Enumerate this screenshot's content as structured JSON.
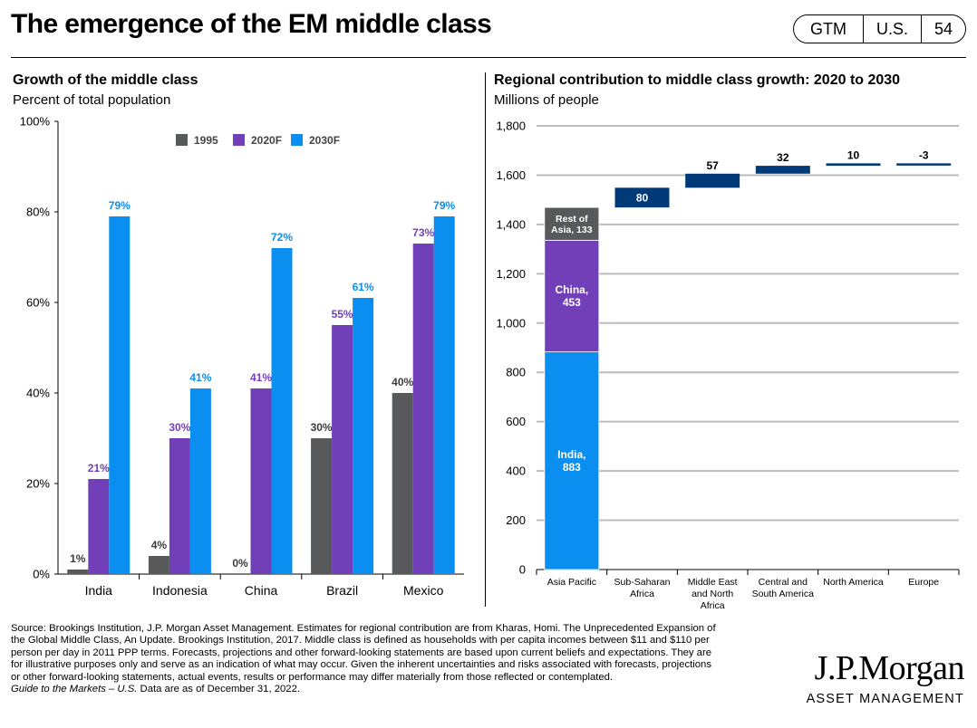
{
  "header": {
    "title": "The emergence of the EM middle class",
    "tags": [
      "GTM",
      "U.S.",
      "54"
    ]
  },
  "left_chart": {
    "title": "Growth of the middle class",
    "subtitle": "Percent of total population"
  },
  "right_chart": {
    "title": "Regional contribution to middle class growth: 2020 to 2030",
    "subtitle": "Millions of people"
  },
  "colors": {
    "s1995": "#58595b",
    "s2020": "#7140b8",
    "s2030": "#0a8ff0",
    "navy": "#003a78",
    "grid": "#bcbcbc"
  },
  "chart_data": [
    {
      "type": "bar",
      "title": "Growth of the middle class",
      "ylabel": "Percent of total population",
      "categories": [
        "India",
        "Indonesia",
        "China",
        "Brazil",
        "Mexico"
      ],
      "series": [
        {
          "name": "1995",
          "values": [
            1,
            4,
            0,
            30,
            40
          ],
          "labels": [
            "1%",
            "4%",
            "0%",
            "30%",
            "40%"
          ]
        },
        {
          "name": "2020F",
          "values": [
            21,
            30,
            41,
            55,
            73
          ],
          "labels": [
            "21%",
            "30%",
            "41%",
            "55%",
            "73%"
          ]
        },
        {
          "name": "2030F",
          "values": [
            79,
            41,
            72,
            61,
            79
          ],
          "labels": [
            "79%",
            "41%",
            "72%",
            "61%",
            "79%"
          ]
        }
      ],
      "yticks": [
        "0%",
        "20%",
        "40%",
        "60%",
        "80%",
        "100%"
      ],
      "ylim": [
        0,
        100
      ],
      "legend_position": "top",
      "grid": false
    },
    {
      "type": "bar",
      "subtype": "waterfall",
      "title": "Regional contribution to middle class growth: 2020 to 2030",
      "ylabel": "Millions of people",
      "categories": [
        "Asia Pacific",
        "Sub-Saharan Africa",
        "Middle East and North Africa",
        "Central and South America",
        "North America",
        "Europe"
      ],
      "category_lines": [
        [
          "Asia Pacific"
        ],
        [
          "Sub-Saharan",
          "Africa"
        ],
        [
          "Middle East",
          "and North",
          "Africa"
        ],
        [
          "Central and",
          "South America"
        ],
        [
          "North America"
        ],
        [
          "Europe"
        ]
      ],
      "stack": [
        {
          "name": "India",
          "value": 883,
          "label": [
            "India,",
            "883"
          ]
        },
        {
          "name": "China",
          "value": 453,
          "label": [
            "China,",
            "453"
          ]
        },
        {
          "name": "Rest of Asia",
          "value": 133,
          "label": [
            "Rest of",
            "Asia, 133"
          ]
        }
      ],
      "increments": [
        80,
        57,
        32,
        10,
        -3
      ],
      "increment_labels": [
        "80",
        "57",
        "32",
        "10",
        "-3"
      ],
      "yticks": [
        "0",
        "200",
        "400",
        "600",
        "800",
        "1,000",
        "1,200",
        "1,400",
        "1,600",
        "1,800"
      ],
      "ylim": [
        0,
        1800
      ],
      "grid": true
    }
  ],
  "footer": {
    "source_lines": [
      "Source: Brookings Institution, J.P. Morgan Asset Management. Estimates for regional contribution are from Kharas, Homi. The Unprecedented Expansion of",
      "the Global Middle Class, An Update. Brookings Institution, 2017. Middle class is defined as households with per capita incomes between $11 and $110 per",
      "person per day in 2011 PPP terms. Forecasts, projections and other forward-looking statements are based upon current beliefs and expectations. They are",
      "for illustrative purposes only and serve as an indication of what may occur. Given the inherent uncertainties and risks associated with forecasts, projections",
      "or other forward-looking statements, actual events, results or performance may differ materially from those reflected or contemplated."
    ],
    "guide_italic": "Guide to the Markets – U.S.",
    "guide_rest": " Data are as of December 31, 2022.",
    "logo_main": "J.P.Morgan",
    "logo_sub": "ASSET MANAGEMENT"
  }
}
